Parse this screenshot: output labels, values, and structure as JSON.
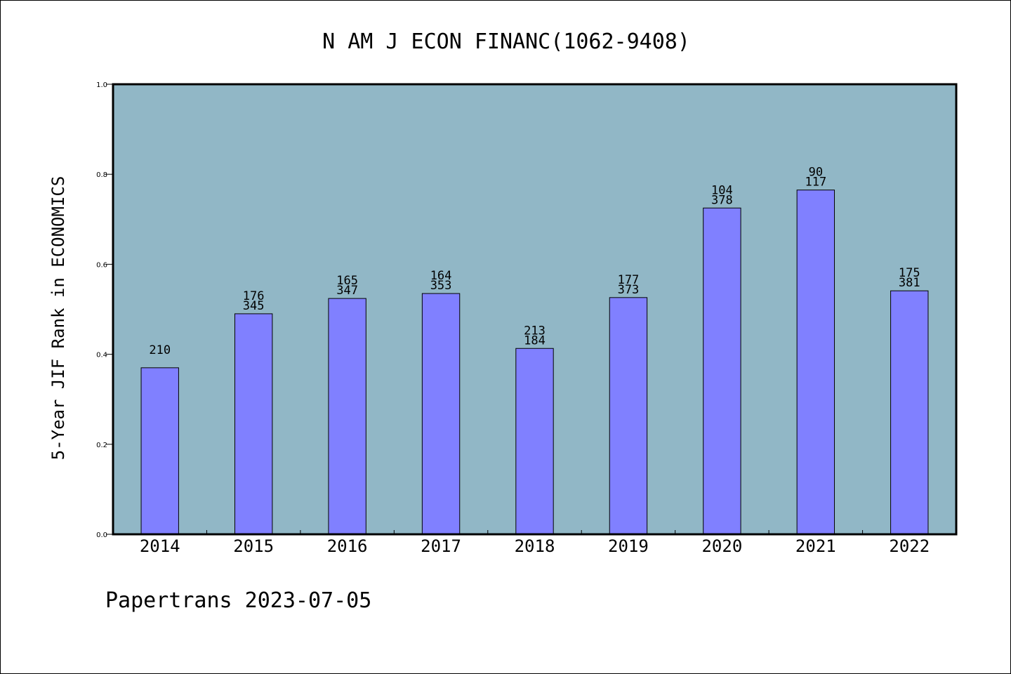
{
  "chart_data": {
    "type": "bar",
    "title": "N AM J ECON FINANC(1062-9408)",
    "xlabel": "",
    "ylabel": "5-Year JIF Rank in ECONOMICS",
    "ylim": [
      0.0,
      1.0
    ],
    "yticks": [
      "0.0",
      "0.2",
      "0.4",
      "0.6",
      "0.8",
      "1.0"
    ],
    "grid": false,
    "categories": [
      "2014",
      "2015",
      "2016",
      "2017",
      "2018",
      "2019",
      "2020",
      "2021",
      "2022"
    ],
    "values": [
      0.37,
      0.49,
      0.524,
      0.535,
      0.413,
      0.526,
      0.725,
      0.765,
      0.541
    ],
    "bar_labels": [
      [
        "210"
      ],
      [
        "176",
        "345"
      ],
      [
        "165",
        "347"
      ],
      [
        "164",
        "353"
      ],
      [
        "213",
        "184"
      ],
      [
        "177",
        "373"
      ],
      [
        "104",
        "378"
      ],
      [
        "90",
        "117"
      ],
      [
        "175",
        "381"
      ]
    ],
    "colors": {
      "plot_background": "#91b7c6",
      "bar_fill": "#8080ff",
      "bar_edge": "#000000"
    }
  },
  "footer": {
    "text": "Papertrans 2023-07-05"
  }
}
